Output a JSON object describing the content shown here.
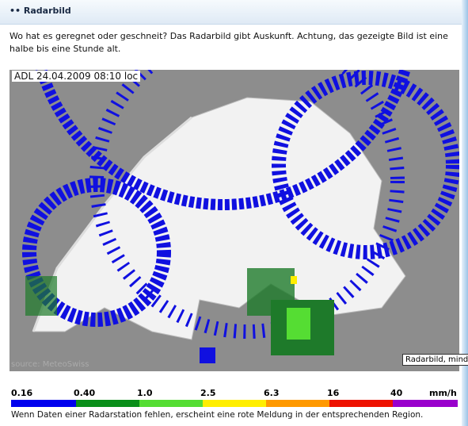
{
  "header": {
    "title": "Radarbild"
  },
  "intro": "Wo hat es geregnet oder geschneit? Das Radarbild gibt Auskunft. Achtung, das gezeigte Bild ist eine halbe bis eine Stunde alt.",
  "map": {
    "timestamp": "ADL 24.04.2009 08:10 loc",
    "source": "source: MeteoSwiss",
    "tooltip": "Radarbild, mind."
  },
  "legend": {
    "ticks": [
      "0.16",
      "0.40",
      "1.0",
      "2.5",
      "6.3",
      "16",
      "40"
    ],
    "unit": "mm/h"
  },
  "note": "Wenn Daten einer Radarstation fehlen, erscheint eine rote Meldung in der entsprechenden Region."
}
